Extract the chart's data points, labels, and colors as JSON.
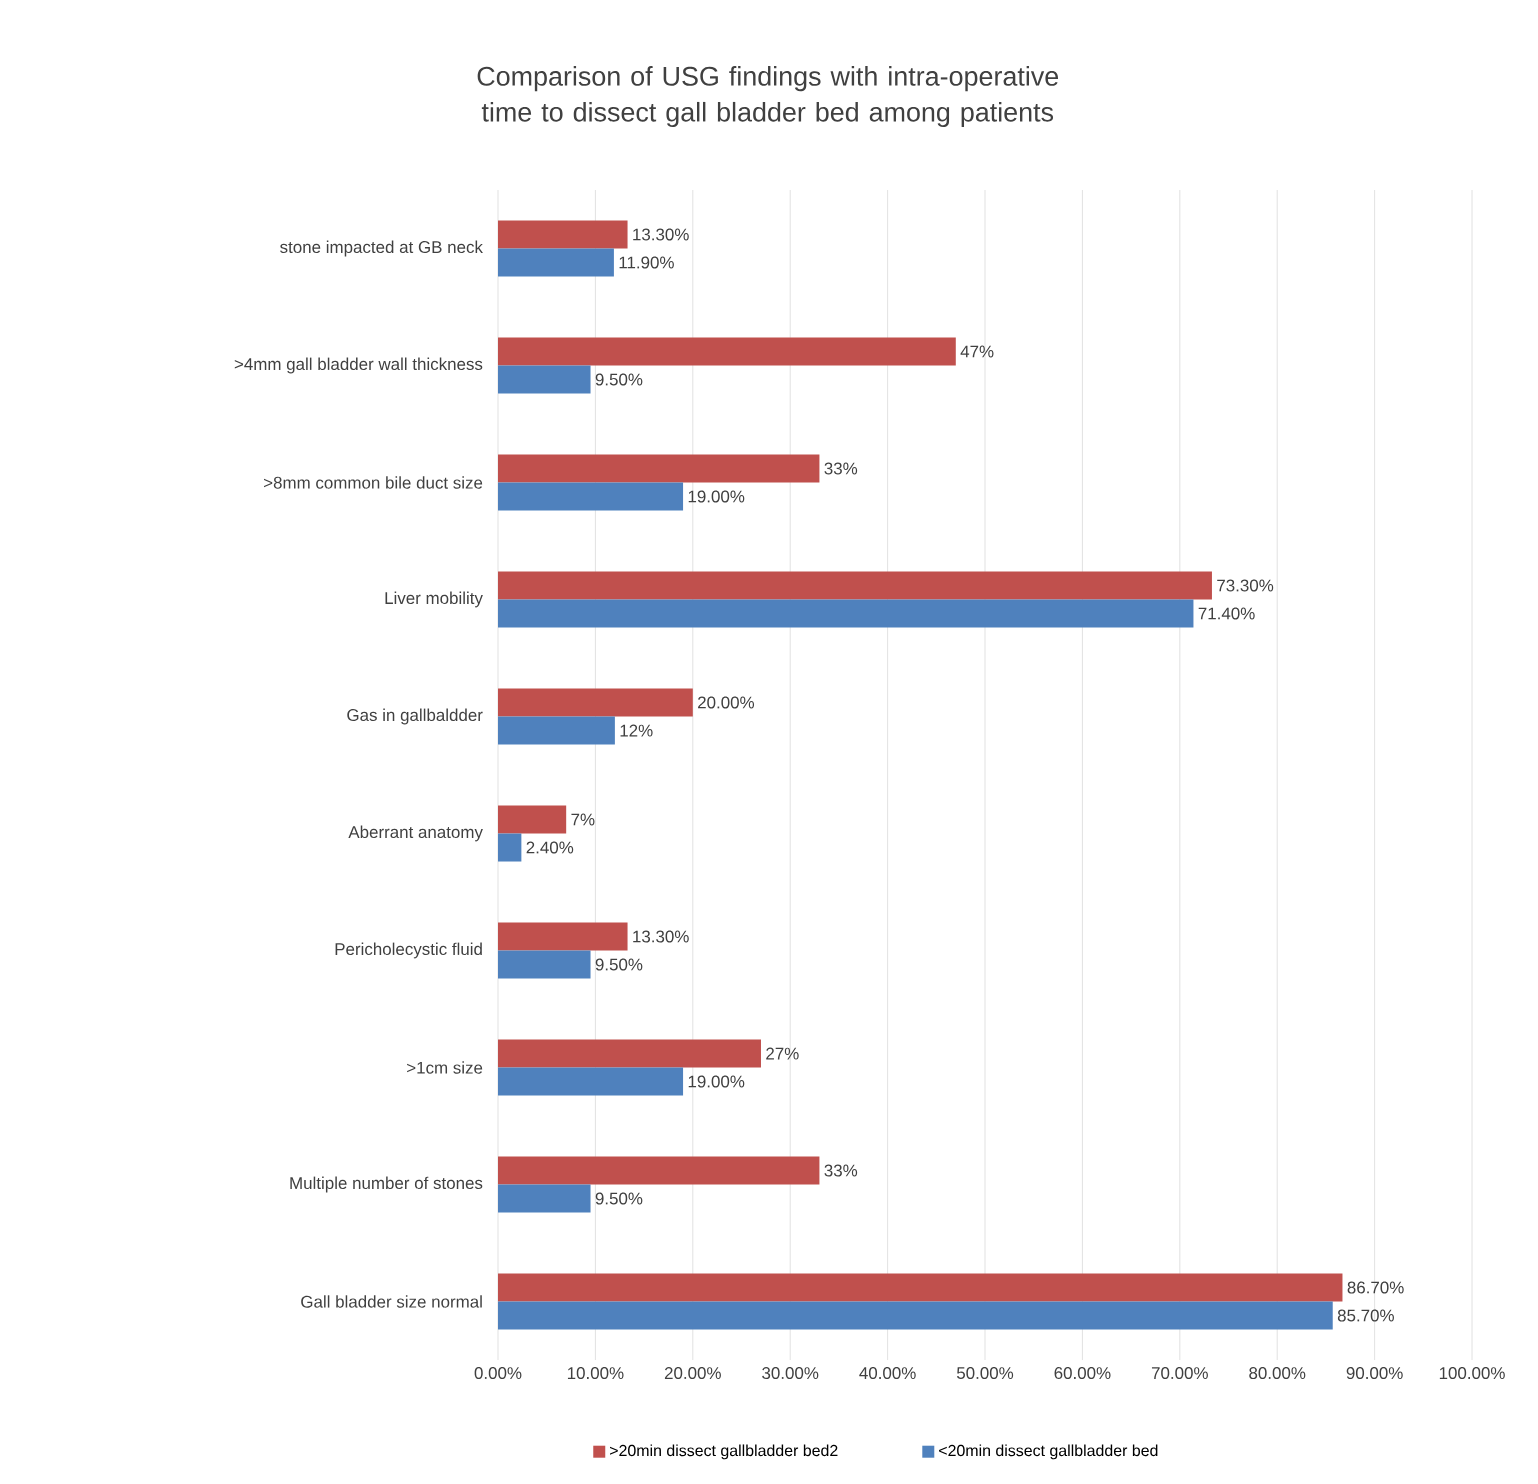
{
  "chart_data": {
    "type": "bar",
    "orientation": "horizontal",
    "title": "Comparison of USG findings with intra-operative time to dissect gall bladder bed among patients",
    "categories": [
      "stone impacted at GB neck",
      ">4mm gall bladder wall thickness",
      ">8mm common bile duct size",
      "Liver mobility",
      "Gas in gallbaldder",
      "Aberrant anatomy",
      "Pericholecystic fluid",
      ">1cm size",
      "Multiple number of stones",
      "Gall bladder size normal"
    ],
    "series": [
      {
        "name": ">20min dissect gallbladder bed2",
        "color": "#c0504d",
        "values": [
          13.3,
          47,
          33,
          73.3,
          20,
          7,
          13.3,
          27,
          33,
          86.7
        ],
        "value_labels": [
          "13.30%",
          "47%",
          "33%",
          "73.30%",
          "20.00%",
          "7%",
          "13.30%",
          "27%",
          "33%",
          "86.70%"
        ]
      },
      {
        "name": "<20min dissect gallbladder bed",
        "color": "#4f81bd",
        "values": [
          11.9,
          9.5,
          19,
          71.4,
          12,
          2.4,
          9.5,
          19,
          9.5,
          85.7
        ],
        "value_labels": [
          "11.90%",
          "9.50%",
          "19.00%",
          "71.40%",
          "12%",
          "2.40%",
          "9.50%",
          "19.00%",
          "9.50%",
          "85.70%"
        ]
      }
    ],
    "xlim": [
      0,
      100
    ],
    "xticks": [
      {
        "value": 0,
        "label": "0.00%"
      },
      {
        "value": 10,
        "label": "10.00%"
      },
      {
        "value": 20,
        "label": "20.00%"
      },
      {
        "value": 30,
        "label": "30.00%"
      },
      {
        "value": 40,
        "label": "40.00%"
      },
      {
        "value": 50,
        "label": "50.00%"
      },
      {
        "value": 60,
        "label": "60.00%"
      },
      {
        "value": 70,
        "label": "70.00%"
      },
      {
        "value": 80,
        "label": "80.00%"
      },
      {
        "value": 90,
        "label": "90.00%"
      },
      {
        "value": 100,
        "label": "100.00%"
      }
    ],
    "grid": "x",
    "legend": "bottom"
  }
}
